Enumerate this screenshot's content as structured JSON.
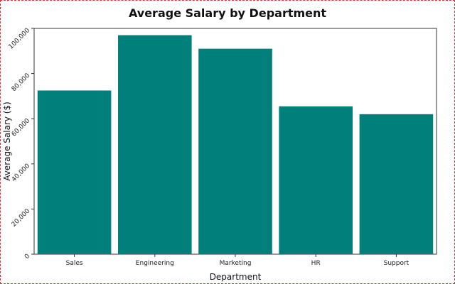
{
  "chart_data": {
    "type": "bar",
    "title": "Average Salary by Department",
    "xlabel": "Department",
    "ylabel": "Average Salary ($)",
    "categories": [
      "Sales",
      "Engineering",
      "Marketing",
      "HR",
      "Support"
    ],
    "values": [
      72500,
      97000,
      91000,
      65500,
      62000
    ],
    "ylim": [
      0,
      100000
    ],
    "yticks": [
      0,
      20000,
      40000,
      60000,
      80000,
      100000
    ],
    "ytick_labels": [
      "0",
      "20,000",
      "40,000",
      "60,000",
      "80,000",
      "100,000"
    ],
    "bar_color": "#007f7b",
    "grid": false,
    "legend": "none"
  }
}
